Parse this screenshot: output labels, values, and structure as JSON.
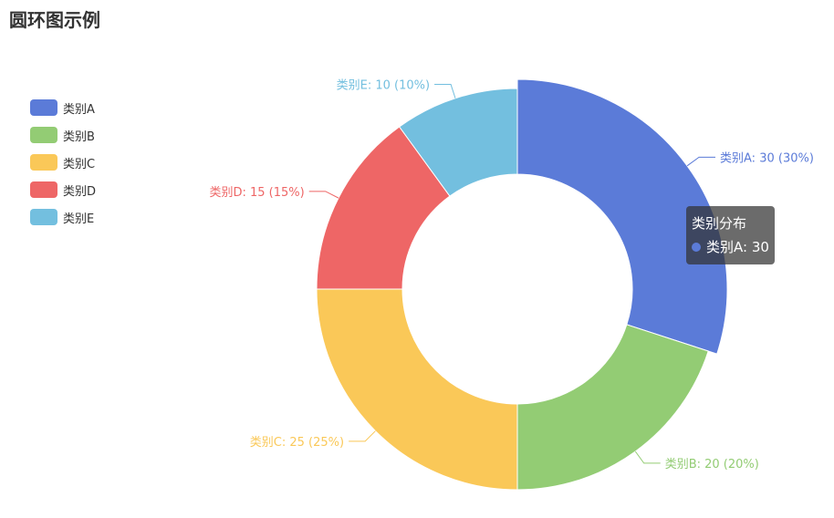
{
  "title": "圆环图示例",
  "colors": [
    "#5b7bd8",
    "#93cc74",
    "#fac858",
    "#ee6666",
    "#73bfdf"
  ],
  "chart_data": {
    "type": "pie",
    "variant": "donut",
    "title": "圆环图示例",
    "series_name": "类别分布",
    "legend_position": "left",
    "categories": [
      "类别A",
      "类别B",
      "类别C",
      "类别D",
      "类别E"
    ],
    "values": [
      30,
      20,
      25,
      15,
      10
    ],
    "labels": [
      "类别A: 30 (30%)",
      "类别B: 20 (20%)",
      "类别C: 25 (25%)",
      "类别D: 15 (15%)",
      "类别E: 10 (10%)"
    ],
    "highlighted": 0
  },
  "tooltip": {
    "title": "类别分布",
    "text": "类别A: 30"
  }
}
